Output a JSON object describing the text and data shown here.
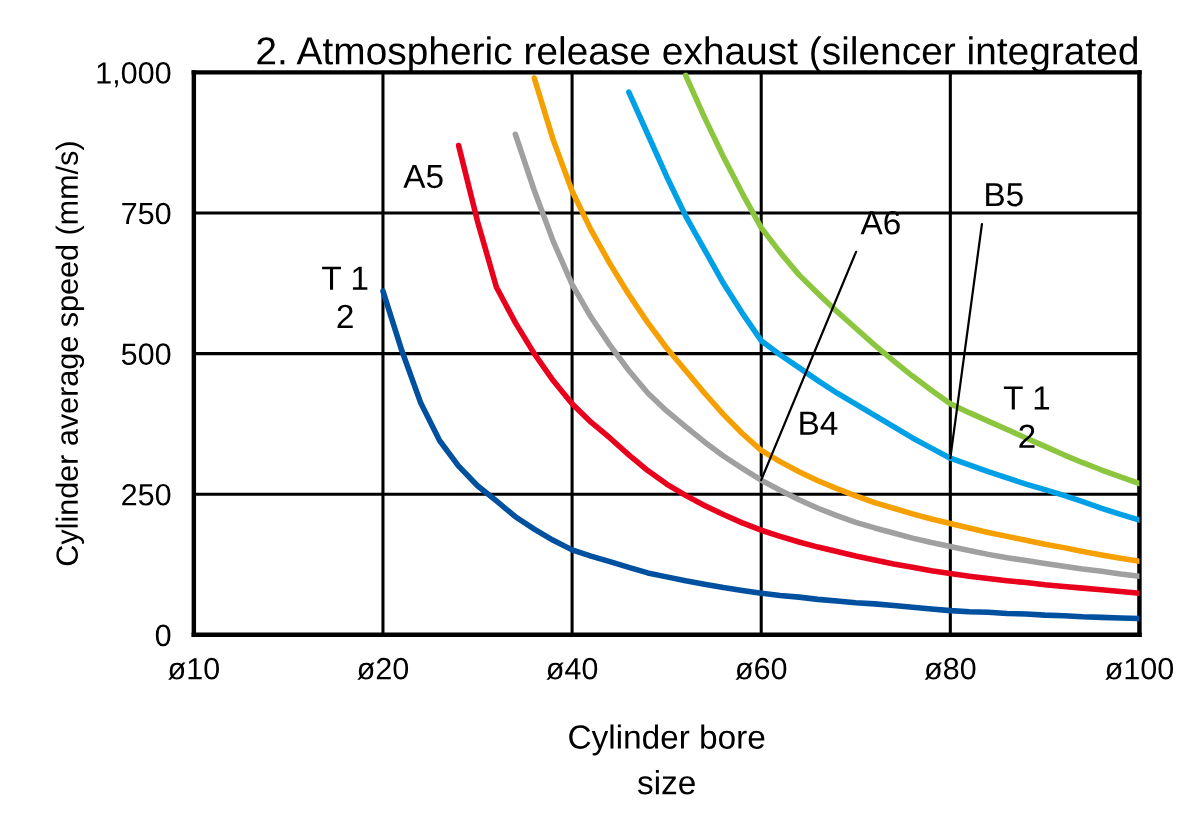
{
  "chart_data": {
    "type": "line",
    "title": "2. Atmospheric release exhaust (silencer integrated",
    "xlabel": "Cylinder bore\nsize",
    "ylabel": "Cylinder average speed (mm/s)",
    "categories": [
      "ø10",
      null,
      null,
      null,
      null,
      null,
      null,
      null,
      null,
      null,
      "ø20",
      null,
      null,
      null,
      null,
      null,
      null,
      null,
      null,
      null,
      "ø40",
      null,
      null,
      null,
      null,
      null,
      null,
      null,
      null,
      null,
      "ø60",
      null,
      null,
      null,
      null,
      null,
      null,
      null,
      null,
      null,
      "ø80",
      null,
      null,
      null,
      null,
      null,
      null,
      null,
      null,
      null,
      "ø100"
    ],
    "ylim": [
      0,
      1000
    ],
    "yticks": [
      0,
      250,
      500,
      750,
      {
        "value": 1000,
        "label": "1,000"
      }
    ],
    "grid": true,
    "marker": "none",
    "line_style": "solid",
    "series": [
      {
        "color": "#0050a0",
        "values": [
          null,
          null,
          null,
          null,
          null,
          null,
          null,
          null,
          null,
          null,
          611,
          505,
          412,
          345,
          300,
          265,
          238,
          210,
          188,
          168,
          151,
          140,
          130,
          120,
          110,
          103,
          96,
          90,
          84,
          79,
          74,
          70,
          67,
          63,
          60,
          57,
          55,
          52,
          49,
          46,
          43,
          41,
          40,
          38,
          37,
          35,
          34,
          32,
          31,
          30,
          29
        ]
      },
      {
        "color": "#e8001c",
        "values": [
          null,
          null,
          null,
          null,
          null,
          null,
          null,
          null,
          null,
          null,
          null,
          null,
          null,
          null,
          870,
          735,
          618,
          555,
          500,
          452,
          411,
          378,
          350,
          320,
          292,
          268,
          248,
          230,
          214,
          199,
          186,
          175,
          165,
          156,
          148,
          140,
          133,
          126,
          120,
          114,
          109,
          104,
          100,
          96,
          93,
          89,
          86,
          83,
          80,
          77,
          74
        ]
      },
      {
        "color": "#a0a0a0",
        "values": [
          null,
          null,
          null,
          null,
          null,
          null,
          null,
          null,
          null,
          null,
          null,
          null,
          null,
          null,
          null,
          null,
          null,
          890,
          790,
          700,
          623,
          565,
          515,
          470,
          430,
          398,
          370,
          343,
          318,
          296,
          275,
          257,
          240,
          225,
          212,
          200,
          190,
          181,
          172,
          164,
          157,
          150,
          143,
          137,
          132,
          127,
          122,
          117,
          113,
          108,
          104
        ]
      },
      {
        "color": "#f5a000",
        "values": [
          null,
          null,
          null,
          null,
          null,
          null,
          null,
          null,
          null,
          null,
          null,
          null,
          null,
          null,
          null,
          null,
          null,
          null,
          990,
          880,
          789,
          720,
          660,
          605,
          555,
          510,
          470,
          430,
          392,
          358,
          328,
          308,
          290,
          274,
          260,
          247,
          235,
          225,
          215,
          206,
          198,
          190,
          182,
          175,
          168,
          161,
          155,
          148,
          142,
          136,
          131
        ]
      },
      {
        "color": "#00a0e6",
        "values": [
          null,
          null,
          null,
          null,
          null,
          null,
          null,
          null,
          null,
          null,
          null,
          null,
          null,
          null,
          null,
          null,
          null,
          null,
          null,
          null,
          null,
          null,
          null,
          965,
          890,
          815,
          745,
          685,
          625,
          572,
          523,
          498,
          475,
          452,
          430,
          410,
          390,
          370,
          350,
          332,
          314,
          302,
          290,
          279,
          268,
          258,
          248,
          237,
          225,
          214,
          204
        ]
      },
      {
        "color": "#8cc63f",
        "values": [
          null,
          null,
          null,
          null,
          null,
          null,
          null,
          null,
          null,
          null,
          null,
          null,
          null,
          null,
          null,
          null,
          null,
          null,
          null,
          null,
          null,
          null,
          null,
          null,
          null,
          null,
          995,
          920,
          850,
          785,
          724,
          680,
          640,
          607,
          575,
          545,
          515,
          487,
          460,
          435,
          411,
          395,
          380,
          365,
          350,
          335,
          320,
          306,
          293,
          281,
          269
        ]
      }
    ],
    "annotations": [
      "A5",
      "T 1\n2",
      {
        "text": "A6",
        "x": "ø60",
        "y": 275
      },
      "B4",
      {
        "text": "B5",
        "x": "ø80",
        "y": 314
      },
      "T 1\n2"
    ]
  }
}
